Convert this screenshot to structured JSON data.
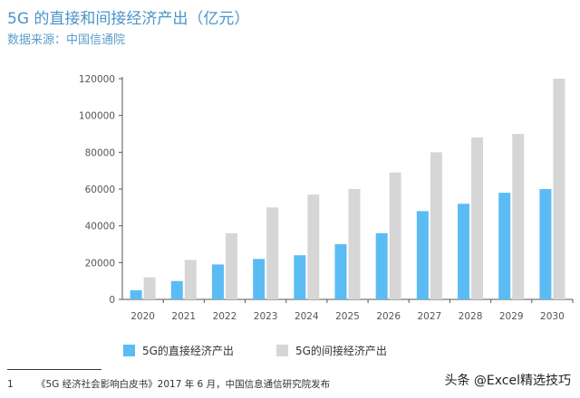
{
  "header": {
    "title": "5G 的直接和间接经济产出（亿元）",
    "source": "数据来源：中国信通院"
  },
  "colors": {
    "direct": "#5bbcf4",
    "indirect": "#d6d6d6",
    "axis": "#555555",
    "tick_text": "#555555"
  },
  "chart_data": {
    "type": "bar",
    "categories": [
      "2020",
      "2021",
      "2022",
      "2023",
      "2024",
      "2025",
      "2026",
      "2027",
      "2028",
      "2029",
      "2030"
    ],
    "series": [
      {
        "name": "5G的直接经济产出",
        "values": [
          5000,
          10000,
          19000,
          22000,
          24000,
          30000,
          36000,
          48000,
          52000,
          58000,
          60000
        ]
      },
      {
        "name": "5G的间接经济产出",
        "values": [
          12000,
          21500,
          36000,
          50000,
          57000,
          60000,
          69000,
          80000,
          88000,
          90000,
          120000
        ]
      }
    ],
    "yticks": [
      0,
      20000,
      40000,
      60000,
      80000,
      100000,
      120000
    ],
    "ylim": [
      0,
      120000
    ],
    "grid": false,
    "legend_position": "bottom"
  },
  "legend": {
    "direct_label": "5G的直接经济产出",
    "indirect_label": "5G的间接经济产出"
  },
  "footnote": {
    "number": "1",
    "text": "《5G 经济社会影响白皮书》2017 年 6 月，中国信息通信研究院发布"
  },
  "watermark": "头条 @Excel精选技巧"
}
